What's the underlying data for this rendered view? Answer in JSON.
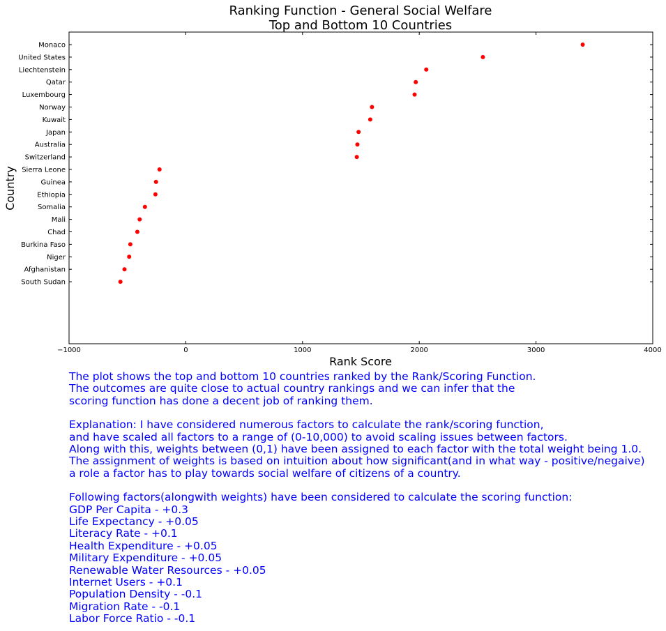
{
  "chart_data": {
    "type": "scatter",
    "title": [
      "Ranking Function - General Social Welfare",
      "Top and Bottom 10 Countries"
    ],
    "xlabel": "Rank Score",
    "ylabel": "Country",
    "xlim": [
      -1000,
      4000
    ],
    "xticks": [
      -1000,
      0,
      1000,
      2000,
      3000,
      4000
    ],
    "xtick_labels": [
      "−1000",
      "0",
      "1000",
      "2000",
      "3000",
      "4000"
    ],
    "marker_color": "#ff0000",
    "grid": false,
    "points": [
      {
        "country": "Monaco",
        "score": 3400
      },
      {
        "country": "United States",
        "score": 2545
      },
      {
        "country": "Liechtenstein",
        "score": 2060
      },
      {
        "country": "Qatar",
        "score": 1970
      },
      {
        "country": "Luxembourg",
        "score": 1960
      },
      {
        "country": "Norway",
        "score": 1595
      },
      {
        "country": "Kuwait",
        "score": 1580
      },
      {
        "country": "Japan",
        "score": 1480
      },
      {
        "country": "Australia",
        "score": 1470
      },
      {
        "country": "Switzerland",
        "score": 1465
      },
      {
        "country": "Sierra Leone",
        "score": -225
      },
      {
        "country": "Guinea",
        "score": -255
      },
      {
        "country": "Ethiopia",
        "score": -260
      },
      {
        "country": "Somalia",
        "score": -350
      },
      {
        "country": "Mali",
        "score": -395
      },
      {
        "country": "Chad",
        "score": -415
      },
      {
        "country": "Burkina Faso",
        "score": -475
      },
      {
        "country": "Niger",
        "score": -485
      },
      {
        "country": "Afghanistan",
        "score": -525
      },
      {
        "country": "South Sudan",
        "score": -560
      }
    ]
  },
  "caption": {
    "summary": [
      "The plot shows the top and bottom 10 countries ranked by the Rank/Scoring Function.",
      "The outcomes are quite close to actual country rankings and we can infer that the",
      "scoring function has done a decent job of ranking them."
    ],
    "explanation": [
      "Explanation: I have considered numerous factors to calculate the rank/scoring function,",
      "and have scaled all factors to a range of (0-10,000) to avoid scaling issues between factors.",
      "Along with this, weights between (0,1) have been assigned to each factor with the total weight being 1.0.",
      "The assignment of weights is based on intuition about how significant(and in what way - positive/negaive)",
      "a role a factor has to play towards social welfare of citizens of a country."
    ],
    "factors_heading": "Following factors(alongwith weights) have been considered to calculate the scoring function:",
    "factors": [
      "GDP Per Capita - +0.3",
      "Life Expectancy - +0.05",
      "Literacy Rate - +0.1",
      "Health Expenditure - +0.05",
      "Military Expenditure - +0.05",
      "Renewable Water Resources - +0.05",
      "Internet Users - +0.1",
      "Population Density - -0.1",
      "Migration Rate - -0.1",
      "Labor Force Ratio - -0.1"
    ]
  }
}
